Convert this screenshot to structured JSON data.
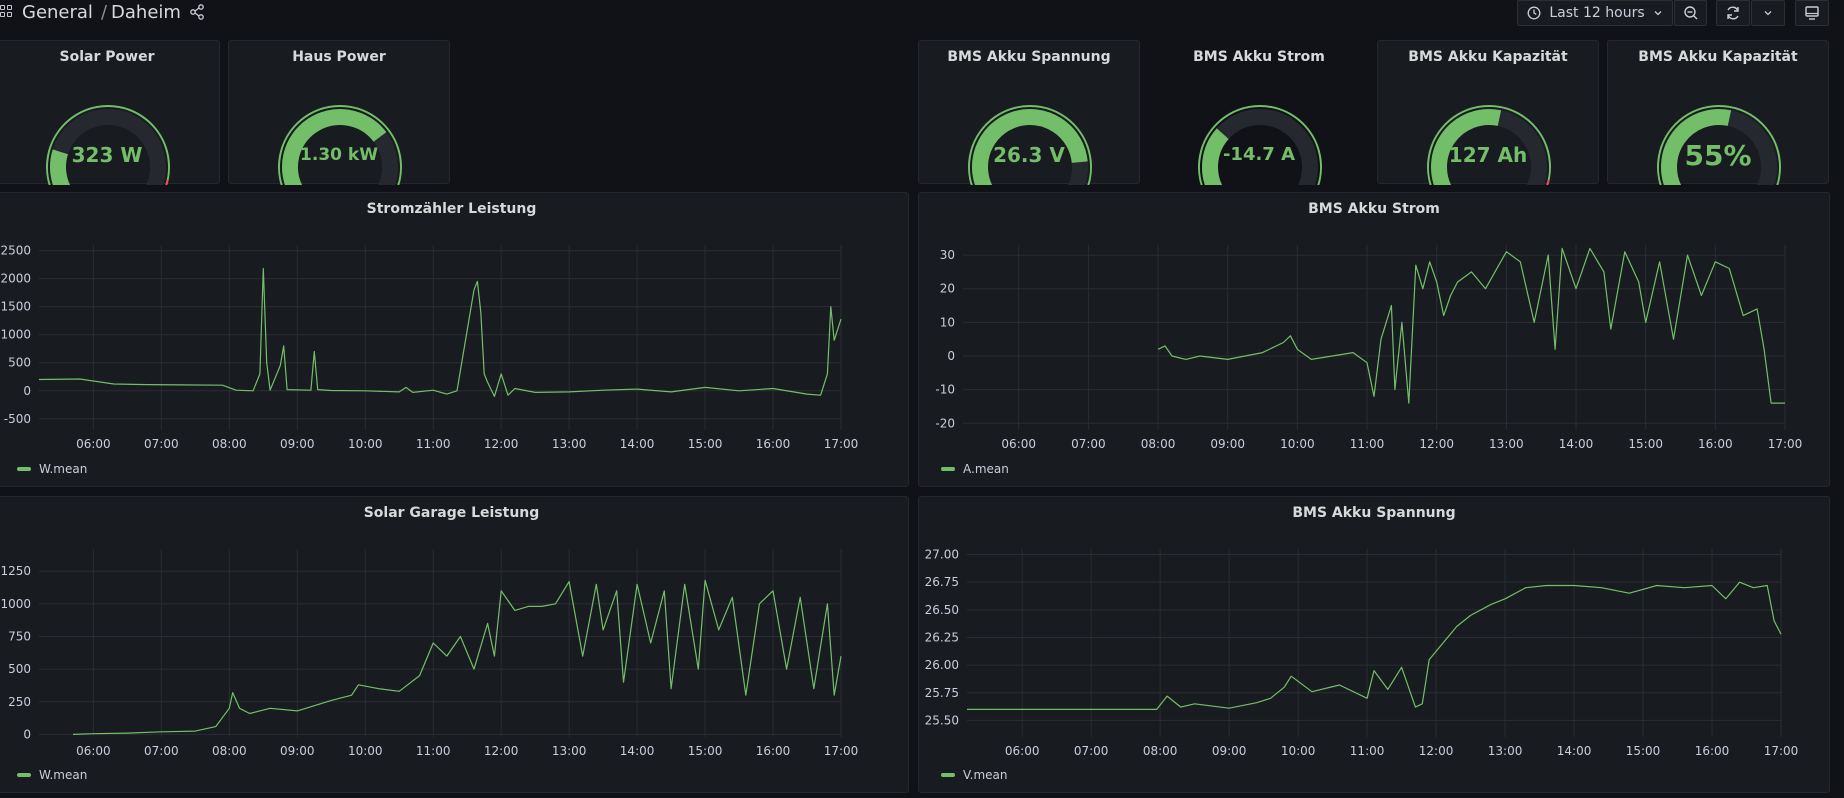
{
  "breadcrumb": {
    "folder": "General",
    "separator": "/",
    "dashboard": "Daheim"
  },
  "toolbar": {
    "time_range": "Last 12 hours"
  },
  "colors": {
    "series": "#73bf69",
    "threshold_red": "#f2495c",
    "track": "#25282e",
    "background": "#111217",
    "panel": "#181b1f"
  },
  "gauges": [
    {
      "title": "Solar Power",
      "display": "323 W",
      "fraction": 0.2,
      "red_zone": true
    },
    {
      "title": "Haus Power",
      "display": "1.30 kW",
      "fraction": 0.72,
      "red_zone": false
    },
    {
      "title": "BMS Akku Spannung",
      "display": "26.3 V",
      "fraction": 0.85,
      "red_zone": false
    },
    {
      "title": "BMS Akku Strom",
      "display": "-14.7 A",
      "fraction": 0.3,
      "red_zone": false
    },
    {
      "title": "BMS Akku Kapazität",
      "display": "127 Ah",
      "fraction": 0.55,
      "red_zone": true
    },
    {
      "title": "BMS Akku Kapazität",
      "display": "55%",
      "fraction": 0.55,
      "red_zone": false
    }
  ],
  "chart_data": [
    {
      "type": "line",
      "title": "Stromzähler Leistung",
      "legend": "W.mean",
      "ylim": [
        -700,
        2600
      ],
      "yticks": [
        "2500",
        "2000",
        "1500",
        "1000",
        "500",
        "0",
        "-500"
      ],
      "ytick_values": [
        2500,
        2000,
        1500,
        1000,
        500,
        0,
        -500
      ],
      "xlim": [
        5.2,
        17.0
      ],
      "xticks": [
        "06:00",
        "07:00",
        "08:00",
        "09:00",
        "10:00",
        "11:00",
        "12:00",
        "13:00",
        "14:00",
        "15:00",
        "16:00",
        "17:00"
      ],
      "x": [
        5.2,
        5.8,
        6.3,
        6.8,
        7.3,
        7.9,
        8.1,
        8.35,
        8.45,
        8.5,
        8.55,
        8.6,
        8.75,
        8.8,
        8.85,
        9.2,
        9.25,
        9.3,
        9.5,
        10.0,
        10.5,
        10.6,
        10.7,
        11.0,
        11.2,
        11.35,
        11.6,
        11.65,
        11.7,
        11.75,
        11.8,
        11.9,
        12.0,
        12.1,
        12.2,
        12.5,
        13.0,
        13.5,
        14.0,
        14.5,
        15.0,
        15.5,
        16.0,
        16.5,
        16.7,
        16.8,
        16.85,
        16.9,
        17.0
      ],
      "y": [
        200,
        210,
        120,
        110,
        105,
        100,
        10,
        0,
        300,
        2180,
        500,
        10,
        450,
        800,
        20,
        10,
        700,
        20,
        5,
        0,
        -20,
        60,
        -30,
        10,
        -60,
        0,
        1800,
        1950,
        1400,
        300,
        150,
        -100,
        300,
        -80,
        40,
        -30,
        -20,
        10,
        30,
        -20,
        60,
        0,
        40,
        -60,
        -80,
        300,
        1500,
        900,
        1280
      ]
    },
    {
      "type": "line",
      "title": "BMS Akku Strom",
      "legend": "A.mean",
      "ylim": [
        -22,
        33
      ],
      "yticks": [
        "30",
        "20",
        "10",
        "0",
        "-10",
        "-20"
      ],
      "ytick_values": [
        30,
        20,
        10,
        0,
        -10,
        -20
      ],
      "xlim": [
        5.2,
        17.0
      ],
      "xticks": [
        "06:00",
        "07:00",
        "08:00",
        "09:00",
        "10:00",
        "11:00",
        "12:00",
        "13:00",
        "14:00",
        "15:00",
        "16:00",
        "17:00"
      ],
      "x": [
        8.0,
        8.1,
        8.2,
        8.4,
        8.6,
        9.0,
        9.5,
        9.8,
        9.9,
        10.0,
        10.2,
        10.5,
        10.8,
        11.0,
        11.1,
        11.2,
        11.35,
        11.4,
        11.5,
        11.6,
        11.7,
        11.8,
        11.9,
        12.0,
        12.1,
        12.2,
        12.3,
        12.5,
        12.7,
        13.0,
        13.2,
        13.4,
        13.6,
        13.7,
        13.8,
        14.0,
        14.2,
        14.4,
        14.5,
        14.7,
        14.9,
        15.0,
        15.2,
        15.4,
        15.6,
        15.8,
        16.0,
        16.2,
        16.4,
        16.6,
        16.7,
        16.8,
        17.0
      ],
      "y": [
        2,
        3,
        0,
        -1,
        0,
        -1,
        1,
        4,
        6,
        2,
        -1,
        0,
        1,
        -2,
        -12,
        5,
        15,
        -10,
        10,
        -14,
        27,
        20,
        28,
        22,
        12,
        18,
        22,
        25,
        20,
        31,
        28,
        10,
        30,
        2,
        32,
        20,
        32,
        25,
        8,
        31,
        22,
        10,
        28,
        5,
        30,
        18,
        28,
        26,
        12,
        14,
        2,
        -14,
        -14
      ]
    },
    {
      "type": "line",
      "title": "Solar Garage Leistung",
      "legend": "W.mean",
      "ylim": [
        -20,
        1420
      ],
      "yticks": [
        "1250",
        "1000",
        "750",
        "500",
        "250",
        "0"
      ],
      "ytick_values": [
        1250,
        1000,
        750,
        500,
        250,
        0
      ],
      "xlim": [
        5.2,
        17.0
      ],
      "xticks": [
        "06:00",
        "07:00",
        "08:00",
        "09:00",
        "10:00",
        "11:00",
        "12:00",
        "13:00",
        "14:00",
        "15:00",
        "16:00",
        "17:00"
      ],
      "x": [
        5.7,
        6.0,
        6.5,
        7.0,
        7.5,
        7.8,
        8.0,
        8.05,
        8.15,
        8.3,
        8.6,
        9.0,
        9.5,
        9.8,
        9.9,
        10.2,
        10.5,
        10.8,
        11.0,
        11.2,
        11.4,
        11.6,
        11.8,
        11.9,
        12.0,
        12.2,
        12.4,
        12.6,
        12.8,
        13.0,
        13.2,
        13.4,
        13.5,
        13.7,
        13.8,
        14.0,
        14.2,
        14.4,
        14.5,
        14.7,
        14.9,
        15.0,
        15.2,
        15.4,
        15.6,
        15.8,
        16.0,
        16.2,
        16.4,
        16.6,
        16.8,
        16.9,
        17.0
      ],
      "y": [
        0,
        5,
        10,
        20,
        25,
        60,
        200,
        320,
        200,
        160,
        200,
        180,
        260,
        300,
        380,
        350,
        330,
        450,
        700,
        600,
        750,
        500,
        850,
        600,
        1100,
        950,
        980,
        980,
        1000,
        1170,
        600,
        1150,
        800,
        1100,
        400,
        1150,
        700,
        1100,
        350,
        1150,
        500,
        1180,
        800,
        1050,
        300,
        1000,
        1100,
        500,
        1050,
        350,
        1000,
        300,
        600
      ]
    },
    {
      "type": "line",
      "title": "BMS Akku Spannung",
      "legend": "V.mean",
      "ylim": [
        25.35,
        27.05
      ],
      "yticks": [
        "27.00",
        "26.75",
        "26.50",
        "26.25",
        "26.00",
        "25.75",
        "25.50"
      ],
      "ytick_values": [
        27.0,
        26.75,
        26.5,
        26.25,
        26.0,
        25.75,
        25.5
      ],
      "xlim": [
        5.2,
        17.0
      ],
      "xticks": [
        "06:00",
        "07:00",
        "08:00",
        "09:00",
        "10:00",
        "11:00",
        "12:00",
        "13:00",
        "14:00",
        "15:00",
        "16:00",
        "17:00"
      ],
      "x": [
        5.2,
        6.0,
        7.0,
        7.95,
        8.1,
        8.3,
        8.5,
        9.0,
        9.4,
        9.6,
        9.8,
        9.9,
        10.2,
        10.6,
        11.0,
        11.1,
        11.3,
        11.5,
        11.7,
        11.8,
        11.9,
        12.1,
        12.3,
        12.5,
        12.8,
        13.0,
        13.3,
        13.6,
        14.0,
        14.4,
        14.8,
        15.2,
        15.6,
        16.0,
        16.2,
        16.4,
        16.6,
        16.8,
        16.9,
        17.0
      ],
      "y": [
        25.6,
        25.6,
        25.6,
        25.6,
        25.72,
        25.62,
        25.65,
        25.61,
        25.66,
        25.7,
        25.8,
        25.9,
        25.76,
        25.82,
        25.7,
        25.95,
        25.78,
        25.98,
        25.62,
        25.65,
        26.05,
        26.2,
        26.35,
        26.45,
        26.55,
        26.6,
        26.7,
        26.72,
        26.72,
        26.7,
        26.65,
        26.72,
        26.7,
        26.72,
        26.6,
        26.75,
        26.7,
        26.72,
        26.4,
        26.28
      ]
    }
  ]
}
